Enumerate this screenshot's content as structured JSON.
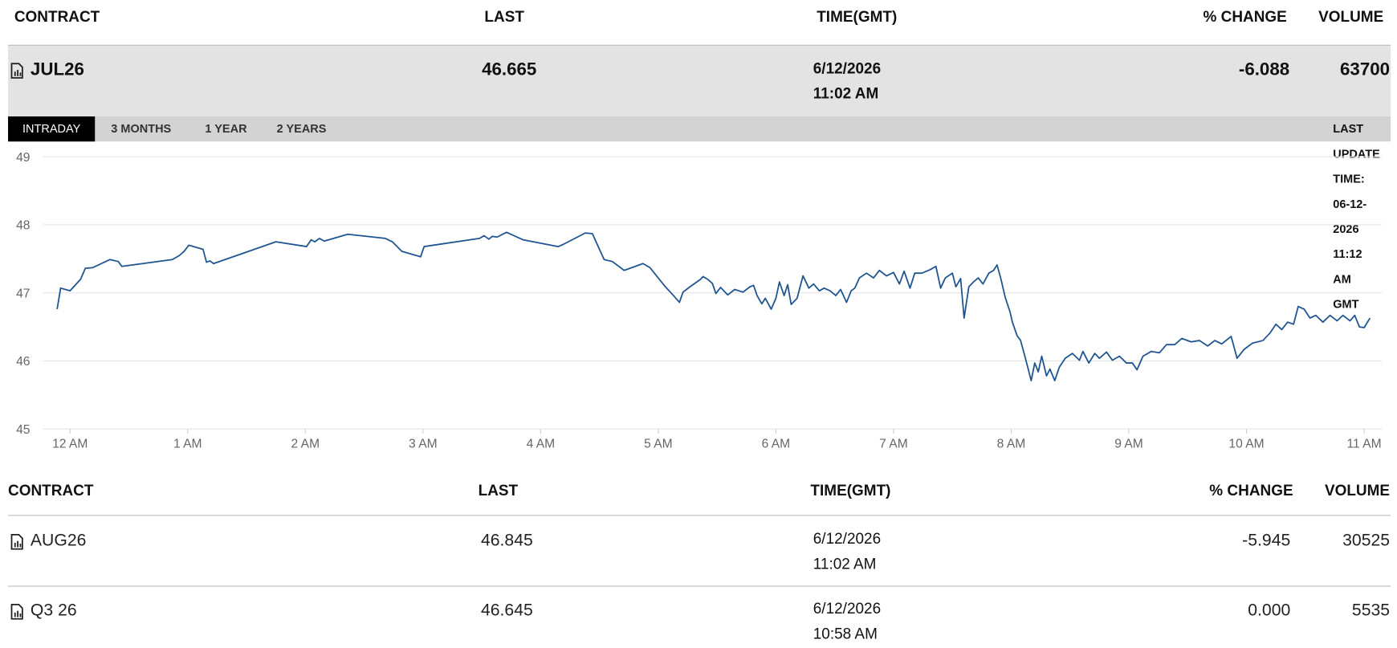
{
  "header": {
    "columns": [
      "CONTRACT",
      "LAST",
      "TIME(GMT)",
      "% CHANGE",
      "VOLUME"
    ]
  },
  "main_row": {
    "contract": "JUL26",
    "last": "46.665",
    "date": "6/12/2026",
    "time": "11:02 AM",
    "change": "-6.088",
    "volume": "63700"
  },
  "tabs": [
    "INTRADAY",
    "3 MONTHS",
    "1 YEAR",
    "2 YEARS"
  ],
  "last_update": "LAST UPDATE TIME: 06-12-2026 11:12 AM GMT",
  "chart_data": {
    "type": "line",
    "color": "#1f5591",
    "grid": true,
    "xlim": [
      -0.23,
      11.15
    ],
    "xticks": [
      {
        "value": 0,
        "label": "12 AM"
      },
      {
        "value": 1,
        "label": "1 AM"
      },
      {
        "value": 2,
        "label": "2 AM"
      },
      {
        "value": 3,
        "label": "3 AM"
      },
      {
        "value": 4,
        "label": "4 AM"
      },
      {
        "value": 5,
        "label": "5 AM"
      },
      {
        "value": 6,
        "label": "6 AM"
      },
      {
        "value": 7,
        "label": "7 AM"
      },
      {
        "value": 8,
        "label": "8 AM"
      },
      {
        "value": 9,
        "label": "9 AM"
      },
      {
        "value": 10,
        "label": "10 AM"
      },
      {
        "value": 11,
        "label": "11 AM"
      }
    ],
    "ylim": [
      45,
      49
    ],
    "yticks": [
      45,
      46,
      47,
      48,
      49
    ],
    "x": [
      -0.11,
      -0.08,
      0.0,
      0.09,
      0.13,
      0.19,
      0.34,
      0.41,
      0.44,
      0.87,
      0.93,
      0.97,
      1.01,
      1.13,
      1.16,
      1.19,
      1.22,
      1.75,
      2.01,
      2.05,
      2.08,
      2.12,
      2.16,
      2.36,
      2.68,
      2.74,
      2.82,
      2.98,
      3.01,
      3.48,
      3.52,
      3.56,
      3.59,
      3.63,
      3.71,
      3.85,
      4.15,
      4.19,
      4.38,
      4.44,
      4.54,
      4.61,
      4.71,
      4.87,
      4.93,
      5.06,
      5.13,
      5.18,
      5.21,
      5.27,
      5.36,
      5.38,
      5.42,
      5.46,
      5.49,
      5.53,
      5.59,
      5.65,
      5.72,
      5.78,
      5.81,
      5.84,
      5.88,
      5.91,
      5.96,
      6.0,
      6.03,
      6.07,
      6.1,
      6.13,
      6.18,
      6.23,
      6.28,
      6.32,
      6.37,
      6.41,
      6.46,
      6.51,
      6.55,
      6.6,
      6.64,
      6.67,
      6.71,
      6.77,
      6.83,
      6.88,
      6.94,
      7.0,
      7.05,
      7.09,
      7.14,
      7.18,
      7.24,
      7.31,
      7.36,
      7.4,
      7.44,
      7.5,
      7.53,
      7.57,
      7.6,
      7.64,
      7.68,
      7.72,
      7.76,
      7.81,
      7.85,
      7.88,
      7.91,
      7.95,
      7.99,
      8.01,
      8.05,
      8.08,
      8.11,
      8.14,
      8.17,
      8.2,
      8.23,
      8.26,
      8.3,
      8.33,
      8.37,
      8.41,
      8.46,
      8.52,
      8.58,
      8.61,
      8.66,
      8.71,
      8.75,
      8.81,
      8.86,
      8.92,
      8.98,
      9.03,
      9.07,
      9.12,
      9.19,
      9.26,
      9.32,
      9.39,
      9.45,
      9.53,
      9.6,
      9.67,
      9.73,
      9.79,
      9.87,
      9.92,
      9.98,
      10.05,
      10.14,
      10.2,
      10.25,
      10.3,
      10.35,
      10.4,
      10.44,
      10.49,
      10.54,
      10.59,
      10.65,
      10.71,
      10.77,
      10.82,
      10.88,
      10.92,
      10.96,
      11.0,
      11.05
    ],
    "values": [
      46.76,
      47.07,
      47.03,
      47.2,
      47.36,
      47.37,
      47.49,
      47.46,
      47.39,
      47.49,
      47.55,
      47.61,
      47.7,
      47.64,
      47.45,
      47.47,
      47.43,
      47.75,
      47.68,
      47.78,
      47.75,
      47.8,
      47.76,
      47.86,
      47.8,
      47.75,
      47.61,
      47.53,
      47.68,
      47.8,
      47.84,
      47.79,
      47.83,
      47.82,
      47.89,
      47.78,
      47.68,
      47.71,
      47.88,
      47.87,
      47.49,
      47.46,
      47.33,
      47.43,
      47.37,
      47.09,
      46.96,
      46.86,
      47.01,
      47.09,
      47.2,
      47.24,
      47.2,
      47.14,
      46.99,
      47.08,
      46.97,
      47.05,
      47.01,
      47.09,
      47.11,
      46.96,
      46.84,
      46.92,
      46.76,
      46.92,
      47.16,
      46.96,
      47.12,
      46.83,
      46.92,
      47.25,
      47.07,
      47.13,
      47.03,
      47.07,
      47.03,
      46.96,
      47.05,
      46.86,
      47.03,
      47.07,
      47.22,
      47.29,
      47.22,
      47.33,
      47.25,
      47.3,
      47.13,
      47.32,
      47.07,
      47.29,
      47.29,
      47.34,
      47.39,
      47.07,
      47.22,
      47.29,
      47.09,
      47.21,
      46.63,
      47.09,
      47.16,
      47.22,
      47.13,
      47.29,
      47.33,
      47.41,
      47.22,
      46.93,
      46.72,
      46.57,
      46.37,
      46.3,
      46.11,
      45.91,
      45.71,
      45.97,
      45.84,
      46.07,
      45.78,
      45.88,
      45.71,
      45.91,
      46.04,
      46.11,
      46.01,
      46.14,
      45.97,
      46.11,
      46.04,
      46.13,
      46.01,
      46.07,
      45.97,
      45.97,
      45.87,
      46.07,
      46.14,
      46.12,
      46.24,
      46.24,
      46.33,
      46.28,
      46.3,
      46.22,
      46.3,
      46.25,
      46.36,
      46.04,
      46.17,
      46.26,
      46.3,
      46.41,
      46.54,
      46.46,
      46.57,
      46.54,
      46.8,
      46.76,
      46.63,
      46.67,
      46.57,
      46.67,
      46.59,
      46.67,
      46.59,
      46.67,
      46.5,
      46.49,
      46.63
    ]
  },
  "table": {
    "columns": [
      "CONTRACT",
      "LAST",
      "TIME(GMT)",
      "% CHANGE",
      "VOLUME"
    ],
    "rows": [
      {
        "contract": "AUG26",
        "last": "46.845",
        "date": "6/12/2026",
        "time": "11:02 AM",
        "change": "-5.945",
        "volume": "30525"
      },
      {
        "contract": "Q3 26",
        "last": "46.645",
        "date": "6/12/2026",
        "time": "10:58 AM",
        "change": "0.000",
        "volume": "5535"
      }
    ]
  }
}
